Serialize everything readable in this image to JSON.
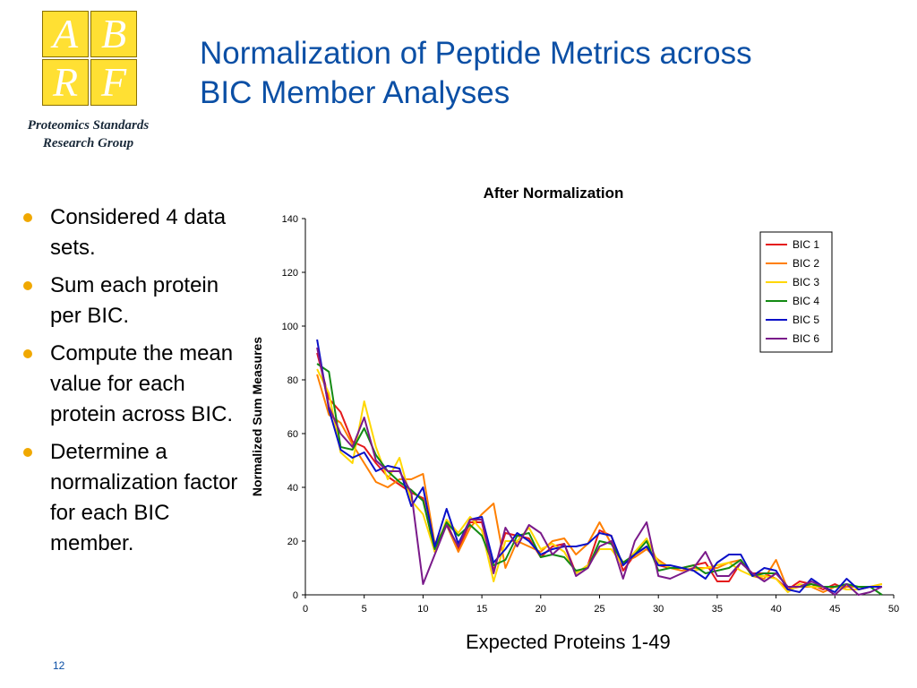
{
  "logo": {
    "letters": [
      "A",
      "B",
      "R",
      "F"
    ],
    "caption_line1": "Proteomics Standards",
    "caption_line2": "Research Group"
  },
  "slide": {
    "title_line1": "Normalization of Peptide Metrics across",
    "title_line2": "BIC Member Analyses",
    "page_number": "12",
    "x_caption": "Expected Proteins 1-49"
  },
  "bullets": [
    "Considered 4 data sets.",
    "Sum each protein per BIC.",
    "Compute the mean value for each protein across BIC.",
    "Determine a normalization factor for each BIC member."
  ],
  "colors": {
    "title": "#0b4fa5",
    "bullet": "#f0a800",
    "logo_fill": "#ffe033"
  },
  "chart_data": {
    "type": "line",
    "title": "After Normalization",
    "xlabel": "",
    "ylabel": "Normalized Sum Measures",
    "xlim": [
      0,
      50
    ],
    "ylim": [
      0,
      140
    ],
    "xticks": [
      0,
      5,
      10,
      15,
      20,
      25,
      30,
      35,
      40,
      45,
      50
    ],
    "yticks": [
      0,
      20,
      40,
      60,
      80,
      100,
      120,
      140
    ],
    "legend_position": "top-right",
    "grid": false,
    "x": [
      1,
      2,
      3,
      4,
      5,
      6,
      7,
      8,
      9,
      10,
      11,
      12,
      13,
      14,
      15,
      16,
      17,
      18,
      19,
      20,
      21,
      22,
      23,
      24,
      25,
      26,
      27,
      28,
      29,
      30,
      31,
      32,
      33,
      34,
      35,
      36,
      37,
      38,
      39,
      40,
      41,
      42,
      43,
      44,
      45,
      46,
      47,
      48,
      49
    ],
    "series": [
      {
        "name": "BIC 1",
        "color": "#e41a1c",
        "values": [
          90,
          73,
          68,
          57,
          55,
          49,
          44,
          41,
          38,
          36,
          16,
          27,
          17,
          27,
          27,
          9,
          23,
          22,
          21,
          14,
          18,
          19,
          8,
          11,
          24,
          22,
          9,
          15,
          18,
          11,
          10,
          10,
          11,
          12,
          5,
          5,
          12,
          8,
          8,
          6,
          2,
          5,
          4,
          2,
          4,
          2,
          2,
          3,
          3
        ]
      },
      {
        "name": "BIC 2",
        "color": "#ff7f00",
        "values": [
          82,
          67,
          64,
          56,
          49,
          42,
          40,
          43,
          43,
          45,
          19,
          26,
          16,
          25,
          30,
          34,
          10,
          20,
          18,
          16,
          20,
          21,
          15,
          19,
          27,
          19,
          12,
          14,
          17,
          13,
          10,
          9,
          10,
          10,
          10,
          12,
          13,
          7,
          6,
          13,
          2,
          3,
          3,
          1,
          3,
          3,
          3,
          3,
          4
        ]
      },
      {
        "name": "BIC 3",
        "color": "#ffd700",
        "values": [
          84,
          75,
          53,
          49,
          72,
          55,
          43,
          51,
          35,
          30,
          16,
          28,
          23,
          29,
          24,
          5,
          20,
          20,
          25,
          17,
          19,
          16,
          8,
          11,
          17,
          17,
          11,
          16,
          21,
          12,
          10,
          10,
          9,
          10,
          11,
          12,
          9,
          7,
          7,
          6,
          1,
          4,
          3,
          3,
          3,
          2,
          2,
          3,
          4
        ]
      },
      {
        "name": "BIC 4",
        "color": "#138a13",
        "values": [
          86,
          83,
          55,
          54,
          62,
          52,
          46,
          42,
          39,
          35,
          17,
          27,
          22,
          26,
          22,
          11,
          13,
          22,
          23,
          14,
          15,
          14,
          9,
          10,
          20,
          19,
          12,
          15,
          20,
          9,
          10,
          10,
          11,
          8,
          9,
          10,
          13,
          7,
          8,
          8,
          3,
          3,
          4,
          3,
          3,
          4,
          3,
          3,
          0
        ]
      },
      {
        "name": "BIC 5",
        "color": "#0a10c8",
        "values": [
          95,
          69,
          54,
          51,
          53,
          46,
          48,
          47,
          33,
          40,
          18,
          32,
          19,
          28,
          29,
          12,
          17,
          23,
          20,
          15,
          17,
          18,
          18,
          19,
          23,
          22,
          11,
          15,
          18,
          11,
          11,
          10,
          9,
          6,
          12,
          15,
          15,
          7,
          10,
          9,
          2,
          1,
          6,
          3,
          1,
          6,
          2,
          3,
          3
        ]
      },
      {
        "name": "BIC 6",
        "color": "#7a1a8a",
        "values": [
          92,
          70,
          60,
          55,
          66,
          50,
          46,
          46,
          38,
          4,
          15,
          26,
          18,
          28,
          28,
          8,
          25,
          18,
          26,
          23,
          15,
          19,
          7,
          10,
          18,
          20,
          6,
          20,
          27,
          7,
          6,
          8,
          10,
          16,
          7,
          7,
          12,
          8,
          5,
          8,
          3,
          3,
          5,
          3,
          0,
          4,
          0,
          1,
          3
        ]
      }
    ]
  }
}
